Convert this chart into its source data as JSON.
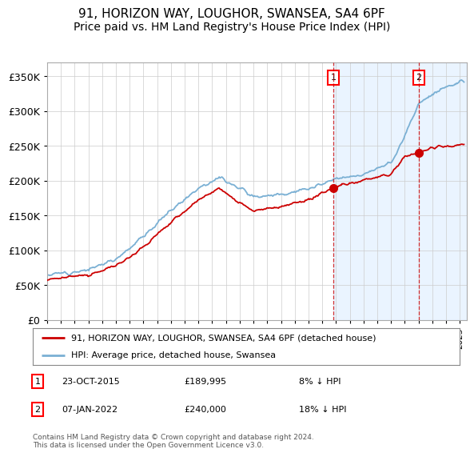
{
  "title": "91, HORIZON WAY, LOUGHOR, SWANSEA, SA4 6PF",
  "subtitle": "Price paid vs. HM Land Registry's House Price Index (HPI)",
  "ylim": [
    0,
    370000
  ],
  "yticks": [
    0,
    50000,
    100000,
    150000,
    200000,
    250000,
    300000,
    350000
  ],
  "sale1_date_num": 2015.81,
  "sale1_label": "1",
  "sale1_price": 189995,
  "sale1_text": "23-OCT-2015",
  "sale1_pct": "8% ↓ HPI",
  "sale2_date_num": 2022.02,
  "sale2_label": "2",
  "sale2_price": 240000,
  "sale2_text": "07-JAN-2022",
  "sale2_pct": "18% ↓ HPI",
  "legend_line1": "91, HORIZON WAY, LOUGHOR, SWANSEA, SA4 6PF (detached house)",
  "legend_line2": "HPI: Average price, detached house, Swansea",
  "footer": "Contains HM Land Registry data © Crown copyright and database right 2024.\nThis data is licensed under the Open Government Licence v3.0.",
  "hpi_color": "#7ab0d4",
  "sale_color": "#cc0000",
  "bg_shade_color": "#ddeeff",
  "dashed_line_color": "#cc0000",
  "title_fontsize": 11,
  "subtitle_fontsize": 10,
  "xmin": 1995,
  "xmax": 2025.5
}
